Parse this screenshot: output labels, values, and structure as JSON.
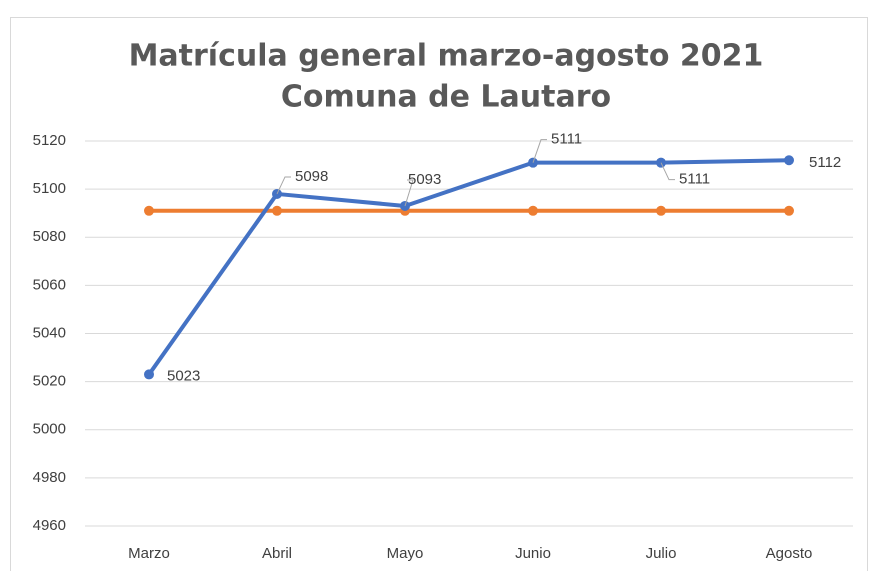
{
  "chart_data": {
    "type": "line",
    "title": [
      "Matrícula general marzo-agosto 2021",
      "Comuna de Lautaro"
    ],
    "categories": [
      "Marzo",
      "Abril",
      "Mayo",
      "Junio",
      "Julio",
      "Agosto"
    ],
    "series": [
      {
        "color": "#4472c4",
        "values": [
          5023,
          5098,
          5093,
          5111,
          5111,
          5112
        ],
        "data_labels": true
      },
      {
        "color": "#ed7d31",
        "values": [
          5091,
          5091,
          5091,
          5091,
          5091,
          5091
        ],
        "data_labels": false
      }
    ],
    "ylim": [
      4960,
      5120
    ],
    "yticks": [
      4960,
      4980,
      5000,
      5020,
      5040,
      5060,
      5080,
      5100,
      5120
    ],
    "grid": true
  }
}
